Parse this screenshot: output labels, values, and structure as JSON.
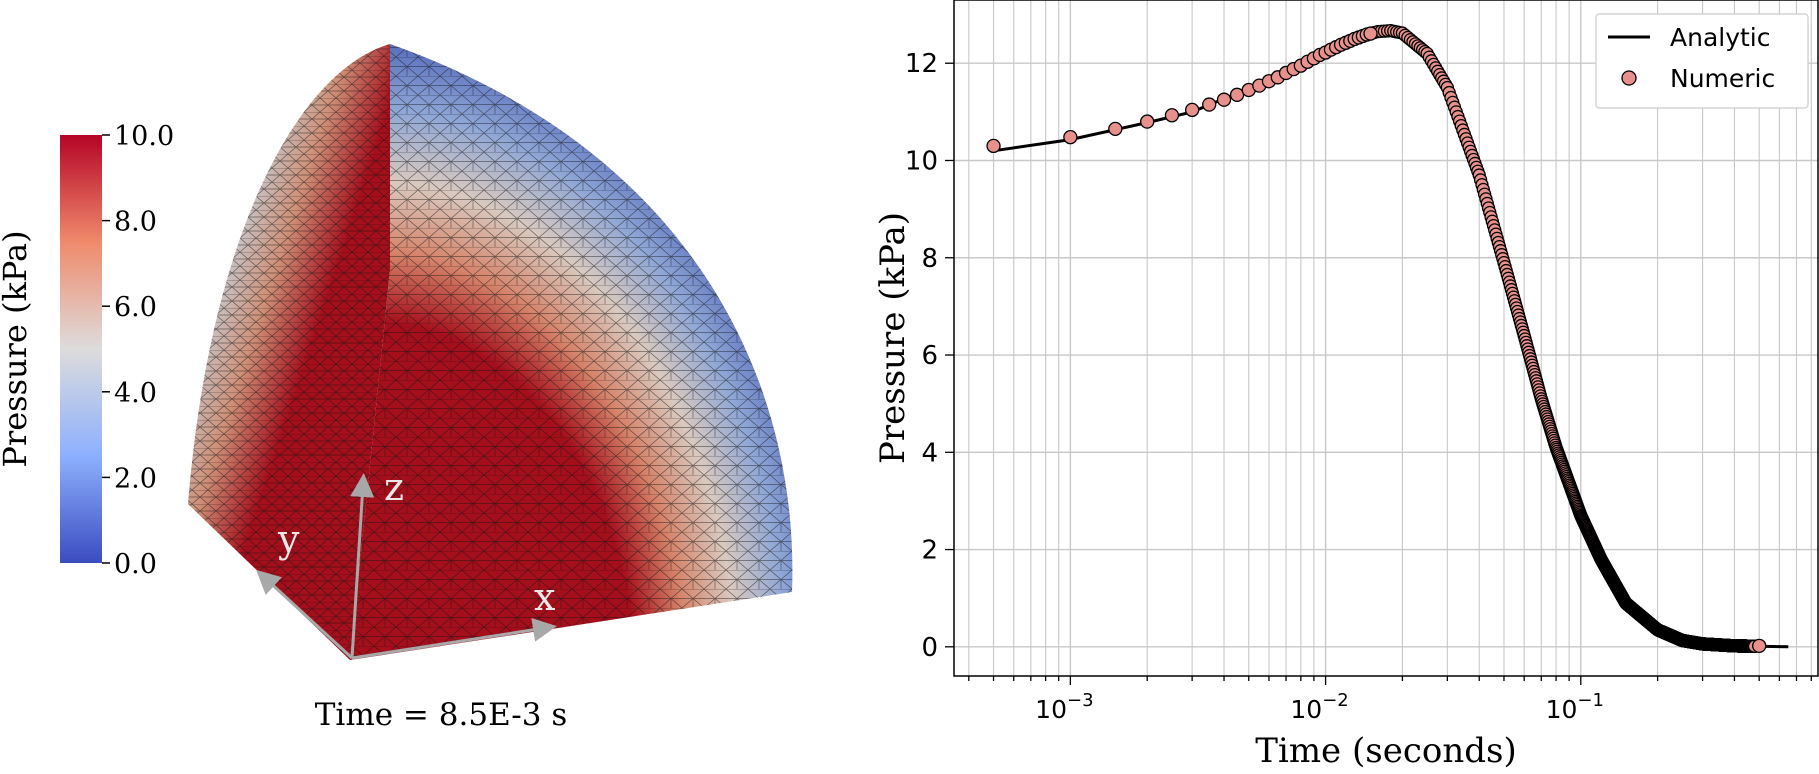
{
  "colorbar": {
    "label": "Pressure (kPa)",
    "ticks": [
      "10.0",
      "8.0",
      "6.0",
      "4.0",
      "2.0",
      "0.0"
    ],
    "tick_values": [
      10,
      8,
      6,
      4,
      2,
      0
    ],
    "colors": {
      "high": "#b40426",
      "mid": "#dddcdc",
      "low": "#3b4cc0"
    }
  },
  "axes3d": {
    "x": "x",
    "y": "y",
    "z": "z"
  },
  "time_caption": "Time = 8.5E-3 s",
  "chart_data": {
    "type": "line",
    "xlabel": "Time (seconds)",
    "ylabel": "Pressure (kPa)",
    "xscale": "log",
    "xlim": [
      0.00035,
      0.85
    ],
    "ylim": [
      -0.6,
      13.3
    ],
    "yticks": [
      0,
      2,
      4,
      6,
      8,
      10,
      12
    ],
    "xticks": [
      {
        "value": 0.001,
        "base": "10",
        "exp": "−3"
      },
      {
        "value": 0.01,
        "base": "10",
        "exp": "−2"
      },
      {
        "value": 0.1,
        "base": "10",
        "exp": "−1"
      }
    ],
    "grid": true,
    "legend_position": "top-right",
    "series": [
      {
        "name": "Analytic",
        "style": "line",
        "color": "#000000",
        "x": [
          0.0005,
          0.001,
          0.002,
          0.003,
          0.005,
          0.007,
          0.01,
          0.013,
          0.016,
          0.018,
          0.02,
          0.025,
          0.03,
          0.04,
          0.05,
          0.06,
          0.07,
          0.08,
          0.1,
          0.12,
          0.15,
          0.2,
          0.25,
          0.3,
          0.4,
          0.5,
          0.65
        ],
        "y": [
          10.2,
          10.43,
          10.78,
          11.0,
          11.48,
          11.85,
          12.22,
          12.52,
          12.65,
          12.67,
          12.62,
          12.2,
          11.5,
          9.7,
          7.9,
          6.4,
          5.1,
          4.1,
          2.7,
          1.8,
          0.9,
          0.35,
          0.13,
          0.06,
          0.02,
          0.01,
          0.0
        ]
      },
      {
        "name": "Numeric",
        "style": "scatter",
        "color": "#e8918c",
        "edge": "#000000",
        "x": [
          0.0005,
          0.001,
          0.0015,
          0.002,
          0.0025,
          0.003,
          0.0035,
          0.004,
          0.0045,
          0.005,
          0.0055,
          0.006,
          0.0065,
          0.007,
          0.0075,
          0.008,
          0.0085,
          0.009,
          0.0095,
          0.01,
          0.0105,
          0.011,
          0.0115,
          0.012,
          0.0125,
          0.013,
          0.0135,
          0.014,
          0.0145,
          0.015,
          0.5
        ],
        "y": [
          10.3,
          10.48,
          10.65,
          10.8,
          10.93,
          11.04,
          11.15,
          11.25,
          11.35,
          11.45,
          11.54,
          11.63,
          11.71,
          11.8,
          11.88,
          11.95,
          12.03,
          12.1,
          12.17,
          12.22,
          12.28,
          12.33,
          12.38,
          12.42,
          12.46,
          12.5,
          12.53,
          12.56,
          12.59,
          12.61,
          0.02
        ]
      }
    ]
  }
}
